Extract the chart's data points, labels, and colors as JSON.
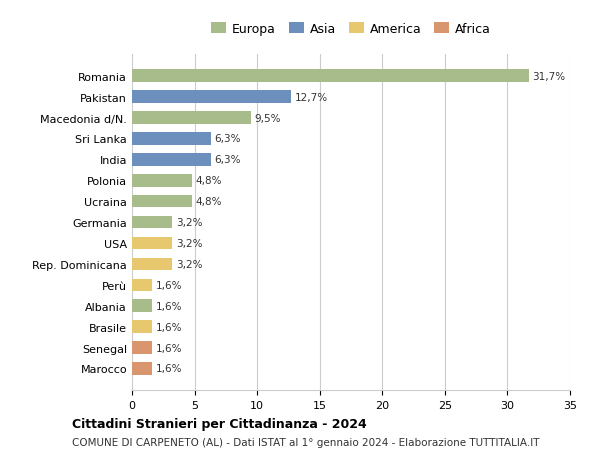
{
  "countries": [
    "Romania",
    "Pakistan",
    "Macedonia d/N.",
    "Sri Lanka",
    "India",
    "Polonia",
    "Ucraina",
    "Germania",
    "USA",
    "Rep. Dominicana",
    "Perù",
    "Albania",
    "Brasile",
    "Senegal",
    "Marocco"
  ],
  "values": [
    31.7,
    12.7,
    9.5,
    6.3,
    6.3,
    4.8,
    4.8,
    3.2,
    3.2,
    3.2,
    1.6,
    1.6,
    1.6,
    1.6,
    1.6
  ],
  "continents": [
    "Europa",
    "Asia",
    "Europa",
    "Asia",
    "Asia",
    "Europa",
    "Europa",
    "Europa",
    "America",
    "America",
    "America",
    "Europa",
    "America",
    "Africa",
    "Africa"
  ],
  "continent_colors": {
    "Europa": "#a8bb8a",
    "Asia": "#6d8fbe",
    "America": "#e8c86e",
    "Africa": "#d9956e"
  },
  "legend_order": [
    "Europa",
    "Asia",
    "America",
    "Africa"
  ],
  "title": "Cittadini Stranieri per Cittadinanza - 2024",
  "subtitle": "COMUNE DI CARPENETO (AL) - Dati ISTAT al 1° gennaio 2024 - Elaborazione TUTTITALIA.IT",
  "xlim": [
    0,
    35
  ],
  "xticks": [
    0,
    5,
    10,
    15,
    20,
    25,
    30,
    35
  ],
  "background_color": "#ffffff",
  "grid_color": "#cccccc",
  "bar_height": 0.6
}
